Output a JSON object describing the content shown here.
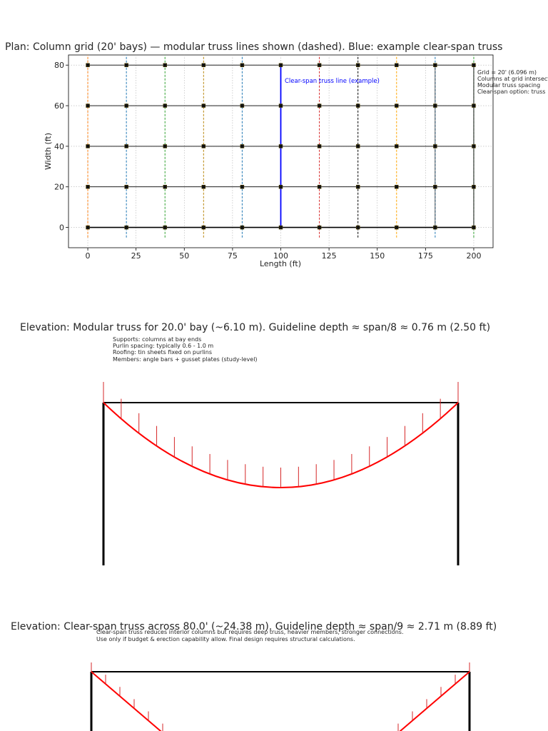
{
  "plan": {
    "title": "Plan: Column grid (20' bays) — modular truss lines shown (dashed). Blue: example clear-span truss",
    "xlabel": "Length (ft)",
    "ylabel": "Width (ft)",
    "xlim": [
      -10,
      210
    ],
    "ylim": [
      -10,
      85
    ],
    "x_ticks": [
      0,
      25,
      50,
      75,
      100,
      125,
      150,
      175,
      200
    ],
    "y_ticks": [
      0,
      20,
      40,
      60,
      80
    ],
    "grid": true,
    "legend_lines": [
      "Grid = 20' (6.096 m)",
      "Columns at grid intersections",
      "Modular truss spacing",
      "Clear-span option: truss"
    ],
    "clear_span_label": "Clear-span truss line (example)",
    "grid_x": [
      0,
      20,
      40,
      60,
      80,
      100,
      120,
      140,
      160,
      180,
      200
    ],
    "grid_y": [
      0,
      20,
      40,
      60,
      80
    ],
    "truss_line_colors": [
      "#ff7f0e",
      "#1f77b4",
      "#2ca02c",
      "#b8860b",
      "#1f77b4",
      "#0000ff",
      "#d62728",
      "#000000",
      "#ffa500",
      "#1f77b4",
      "#2ca02c"
    ],
    "clear_span_x": 100,
    "clear_span_color": "#0000ff"
  },
  "elev1": {
    "title": "Elevation: Modular truss for 20.0' bay (~6.10 m). Guideline depth ≈ span/8 ≈ 0.76 m (2.50 ft)",
    "notes": [
      "Supports: columns at bay ends",
      "Purlin spacing: typically 0.6 - 1.0 m",
      "Roofing: tin sheets fixed on purlins",
      "Members: angle bars + gusset plates (study-level)"
    ],
    "span_ft": 20.0,
    "span_m": 6.1,
    "depth_m": 0.76,
    "depth_ft": 2.5,
    "chord_color": "#ff0000",
    "purlin_count": 20
  },
  "elev2": {
    "title": "Elevation: Clear-span truss across 80.0' (~24.38 m). Guideline depth ≈ span/9 ≈ 2.71 m (8.89 ft)",
    "notes": [
      "Clear-span truss reduces interior columns but requires deep truss, heavier members, stronger connections.",
      "Use only if budget & erection capability allow. Final design requires structural calculations."
    ],
    "span_ft": 80.0,
    "span_m": 24.38,
    "depth_m": 2.71,
    "depth_ft": 8.89,
    "chord_color": "#ff0000"
  }
}
